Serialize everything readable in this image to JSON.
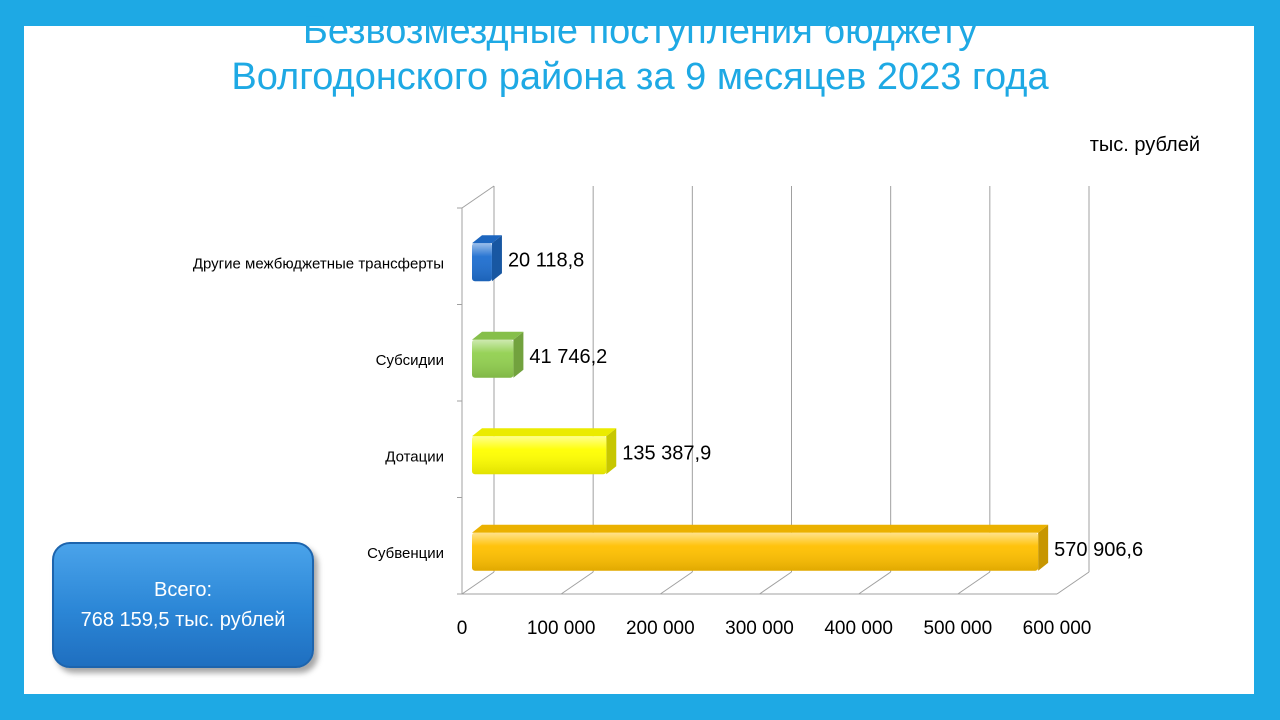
{
  "title_line1": "Безвозмездные поступления бюджету",
  "title_line2": "Волгодонского района за 9 месяцев 2023 года",
  "unit_label": "тыс. рублей",
  "total": {
    "label": "Всего:",
    "value": "768 159,5 тыс. рублей"
  },
  "chart_data": {
    "type": "bar",
    "orientation": "horizontal",
    "categories": [
      "Другие межбюджетные трансферты",
      "Субсидии",
      "Дотации",
      "Субвенции"
    ],
    "values": [
      20118.8,
      41746.2,
      135387.9,
      570906.6
    ],
    "value_labels": [
      "20 118,8",
      "41 746,2",
      "135 387,9",
      "570 906,6"
    ],
    "colors": [
      "#1f6fd0",
      "#92d050",
      "#ffff00",
      "#ffc000"
    ],
    "xlim": [
      0,
      600000
    ],
    "xticks": [
      0,
      100000,
      200000,
      300000,
      400000,
      500000,
      600000
    ],
    "xtick_labels": [
      "0",
      "100 000",
      "200 000",
      "300 000",
      "400 000",
      "500 000",
      "600 000"
    ],
    "grid": true
  }
}
